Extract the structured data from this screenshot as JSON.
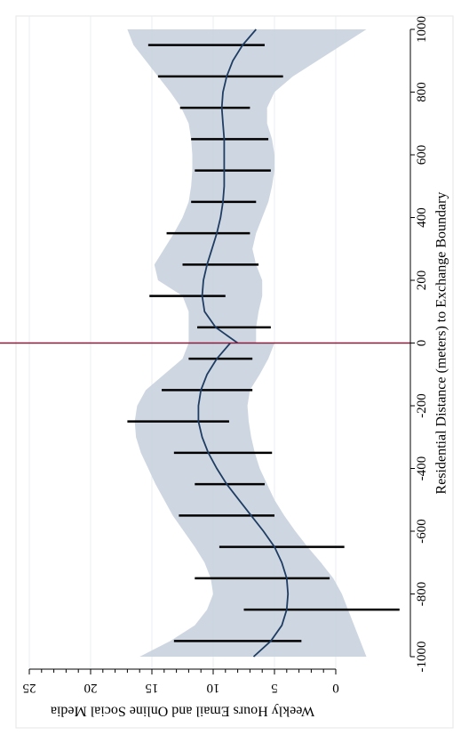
{
  "chart_data": {
    "type": "line",
    "orientation": "rotated-90",
    "title": "",
    "xlabel": "Residential Distance (meters) to Exchange Boundary",
    "ylabel": "Weekly Hours Email and Online Social Media",
    "xlim": [
      -1000,
      1000
    ],
    "ylim": [
      0,
      25
    ],
    "x_ticks": [
      -1000,
      -800,
      -600,
      -400,
      -200,
      0,
      200,
      400,
      600,
      800,
      1000
    ],
    "x_tick_labels": [
      "-1000",
      "-800",
      "-600",
      "-400",
      "-200",
      "0",
      "200",
      "400",
      "600",
      "800",
      "1000"
    ],
    "y_ticks": [
      0,
      5,
      10,
      15,
      20,
      25
    ],
    "y_tick_labels": [
      "0",
      "5",
      "10",
      "15",
      "20",
      "25"
    ],
    "grid": true,
    "cutoff": {
      "x": 0,
      "color": "#8b1a3a"
    },
    "ci_band": {
      "color": "#c5d0dc",
      "left": {
        "x": [
          -1000,
          -950,
          -900,
          -850,
          -800,
          -750,
          -700,
          -650,
          -600,
          -550,
          -500,
          -450,
          -400,
          -350,
          -300,
          -250,
          -200,
          -150,
          -100,
          -50,
          0
        ],
        "lo": [
          -2.5,
          -2.0,
          -1.5,
          -1.0,
          -0.5,
          0.2,
          1.2,
          2.3,
          3.3,
          4.2,
          5.0,
          5.6,
          6.2,
          6.6,
          6.9,
          7.1,
          7.2,
          7.0,
          6.2,
          5.5,
          5.0
        ],
        "hi": [
          16.0,
          13.5,
          11.5,
          10.5,
          10.0,
          10.2,
          10.7,
          11.5,
          12.4,
          13.3,
          14.0,
          14.7,
          15.3,
          15.9,
          16.3,
          16.4,
          16.2,
          15.5,
          14.0,
          12.5,
          12.0
        ]
      },
      "right": {
        "x": [
          0,
          50,
          100,
          150,
          200,
          250,
          300,
          350,
          400,
          450,
          500,
          550,
          600,
          650,
          700,
          750,
          800,
          850,
          900,
          950,
          1000
        ],
        "lo": [
          6.5,
          6.5,
          6.3,
          6.0,
          6.0,
          6.5,
          6.8,
          6.5,
          6.0,
          5.5,
          5.2,
          5.0,
          5.0,
          5.2,
          5.6,
          5.6,
          5.0,
          3.5,
          1.5,
          -0.5,
          -2.5
        ],
        "hi": [
          12.0,
          12.0,
          12.0,
          12.5,
          14.5,
          14.8,
          14.0,
          13.2,
          12.5,
          12.0,
          11.8,
          11.7,
          11.7,
          11.8,
          12.0,
          12.6,
          13.5,
          14.5,
          15.5,
          16.5,
          17.0
        ]
      }
    },
    "series": [
      {
        "type": "fit",
        "color": "#1f3d63",
        "segments": [
          {
            "x": [
              -1000,
              -950,
              -900,
              -850,
              -800,
              -750,
              -700,
              -650,
              -600,
              -550,
              -500,
              -450,
              -400,
              -350,
              -300,
              -250,
              -200,
              -150,
              -100,
              -50,
              0
            ],
            "y": [
              6.7,
              5.3,
              4.4,
              4.0,
              3.9,
              4.0,
              4.4,
              5.0,
              5.9,
              6.9,
              7.9,
              8.9,
              9.7,
              10.4,
              10.9,
              11.2,
              11.2,
              11.0,
              10.5,
              9.7,
              8.6
            ]
          },
          {
            "x": [
              0,
              50,
              100,
              150,
              200,
              250,
              300,
              350,
              400,
              450,
              500,
              550,
              600,
              650,
              700,
              750,
              800,
              850,
              900,
              950,
              1000
            ],
            "y": [
              8.0,
              9.8,
              10.7,
              10.9,
              10.8,
              10.5,
              10.1,
              9.7,
              9.4,
              9.2,
              9.1,
              9.1,
              9.1,
              9.1,
              9.2,
              9.3,
              9.2,
              8.9,
              8.4,
              7.6,
              6.5
            ]
          }
        ]
      },
      {
        "type": "interval",
        "color": "#000000",
        "points": [
          {
            "x": -950,
            "lo": 2.8,
            "hi": 13.2
          },
          {
            "x": -850,
            "lo": -5.2,
            "hi": 7.5
          },
          {
            "x": -750,
            "lo": 0.5,
            "hi": 11.5
          },
          {
            "x": -650,
            "lo": -0.7,
            "hi": 9.5
          },
          {
            "x": -550,
            "lo": 5.0,
            "hi": 12.8
          },
          {
            "x": -450,
            "lo": 5.8,
            "hi": 11.5
          },
          {
            "x": -350,
            "lo": 5.2,
            "hi": 13.2
          },
          {
            "x": -250,
            "lo": 8.7,
            "hi": 17.0
          },
          {
            "x": -150,
            "lo": 6.8,
            "hi": 14.2
          },
          {
            "x": -50,
            "lo": 6.8,
            "hi": 12.0
          },
          {
            "x": 50,
            "lo": 5.3,
            "hi": 11.3
          },
          {
            "x": 150,
            "lo": 9.0,
            "hi": 15.2
          },
          {
            "x": 250,
            "lo": 6.3,
            "hi": 12.5
          },
          {
            "x": 350,
            "lo": 7.0,
            "hi": 13.8
          },
          {
            "x": 450,
            "lo": 6.5,
            "hi": 11.8
          },
          {
            "x": 550,
            "lo": 5.3,
            "hi": 11.5
          },
          {
            "x": 650,
            "lo": 5.5,
            "hi": 11.8
          },
          {
            "x": 750,
            "lo": 7.0,
            "hi": 12.7
          },
          {
            "x": 850,
            "lo": 4.3,
            "hi": 14.5
          },
          {
            "x": 950,
            "lo": 5.8,
            "hi": 15.3
          }
        ]
      }
    ]
  }
}
